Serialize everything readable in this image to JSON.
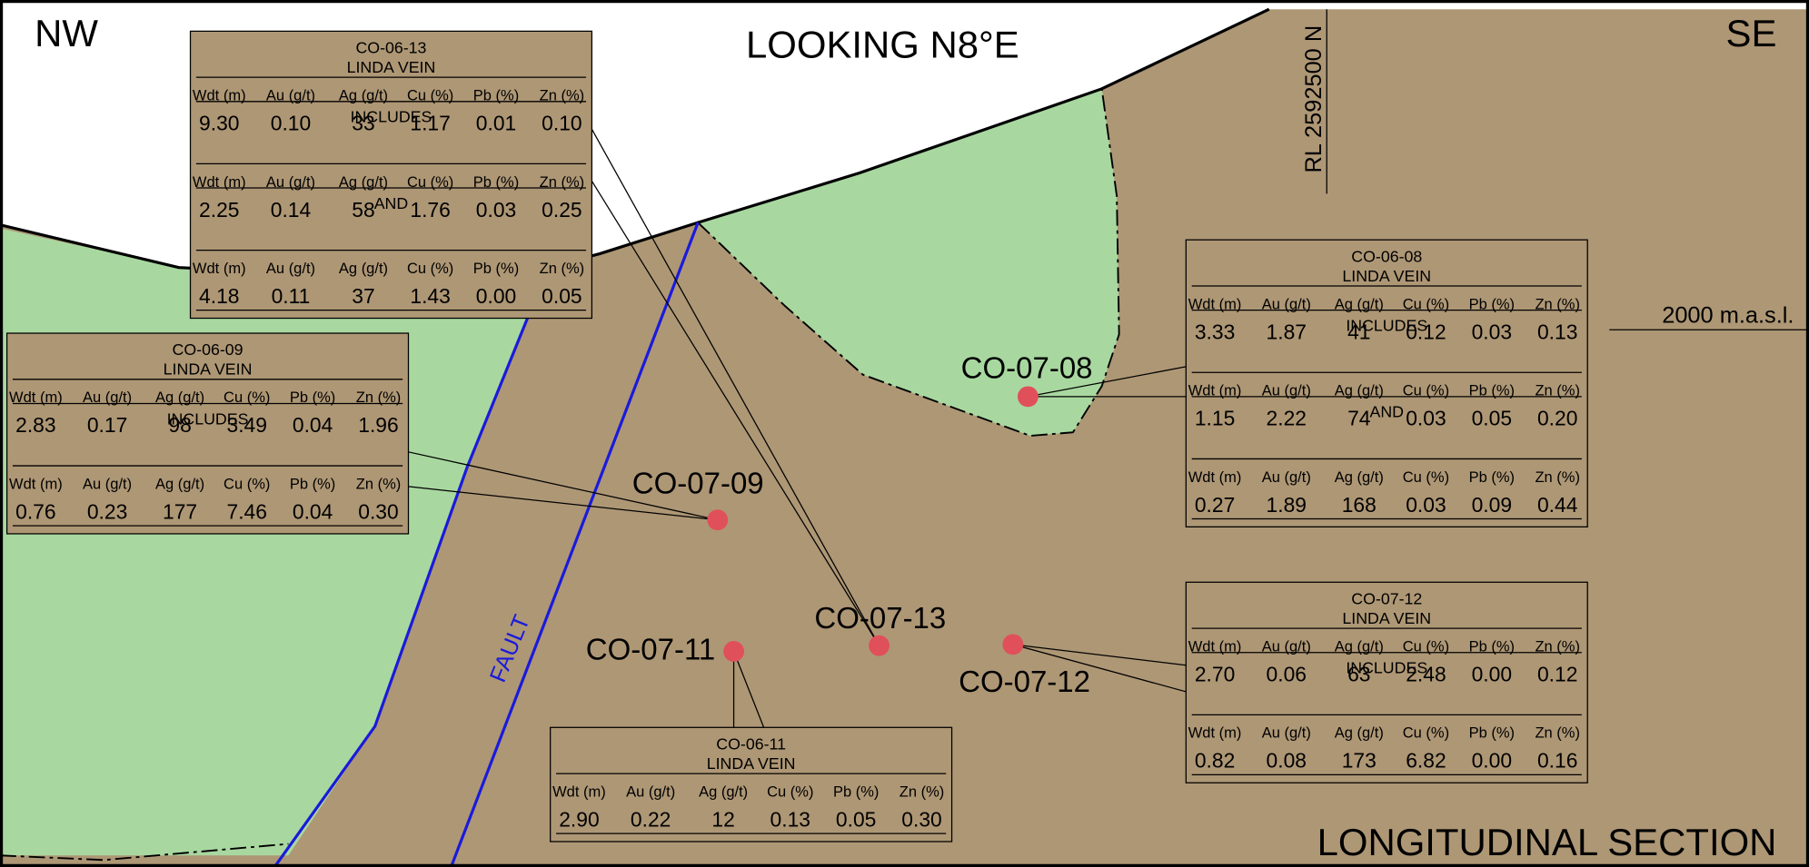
{
  "corner_left": "NW",
  "corner_right": "SE",
  "view": "LOOKING N8°E",
  "section": "LONGITUDINAL SECTION",
  "northing": "RL 2592500 N",
  "elevation": "2000 m.a.s.l.",
  "fault": "FAULT",
  "holes": [
    {
      "label": "CO-07-08"
    },
    {
      "label": "CO-07-09"
    },
    {
      "label": "CO-07-11"
    },
    {
      "label": "CO-07-13"
    },
    {
      "label": "CO-07-12"
    }
  ],
  "columns": [
    "Wdt (m)",
    "Au (g/t)",
    "Ag (g/t)",
    "Cu (%)",
    "Pb (%)",
    "Zn (%)"
  ],
  "tables": [
    {
      "hole": "CO-06-13",
      "vein": "LINDA VEIN",
      "sections": [
        {
          "values": [
            "9.30",
            "0.10",
            "33",
            "1.17",
            "0.01",
            "0.10"
          ]
        },
        {
          "label": "INCLUDES",
          "values": [
            "2.25",
            "0.14",
            "58",
            "1.76",
            "0.03",
            "0.25"
          ]
        },
        {
          "label": "AND",
          "values": [
            "4.18",
            "0.11",
            "37",
            "1.43",
            "0.00",
            "0.05"
          ]
        }
      ]
    },
    {
      "hole": "CO-06-09",
      "vein": "LINDA VEIN",
      "sections": [
        {
          "values": [
            "2.83",
            "0.17",
            "98",
            "3.49",
            "0.04",
            "1.96"
          ]
        },
        {
          "label": "INCLUDES",
          "values": [
            "0.76",
            "0.23",
            "177",
            "7.46",
            "0.04",
            "0.30"
          ]
        }
      ]
    },
    {
      "hole": "CO-06-08",
      "vein": "LINDA VEIN",
      "sections": [
        {
          "values": [
            "3.33",
            "1.87",
            "41",
            "0.12",
            "0.03",
            "0.13"
          ]
        },
        {
          "label": "INCLUDES",
          "values": [
            "1.15",
            "2.22",
            "74",
            "0.03",
            "0.05",
            "0.20"
          ]
        },
        {
          "label": "AND",
          "values": [
            "0.27",
            "1.89",
            "168",
            "0.03",
            "0.09",
            "0.44"
          ]
        }
      ]
    },
    {
      "hole": "CO-07-12",
      "vein": "LINDA VEIN",
      "sections": [
        {
          "values": [
            "2.70",
            "0.06",
            "63",
            "2.48",
            "0.00",
            "0.12"
          ]
        },
        {
          "label": "INCLUDES",
          "values": [
            "0.82",
            "0.08",
            "173",
            "6.82",
            "0.00",
            "0.16"
          ]
        }
      ]
    },
    {
      "hole": "CO-06-11",
      "vein": "LINDA VEIN",
      "sections": [
        {
          "values": [
            "2.90",
            "0.22",
            "12",
            "0.13",
            "0.05",
            "0.30"
          ]
        }
      ]
    }
  ]
}
